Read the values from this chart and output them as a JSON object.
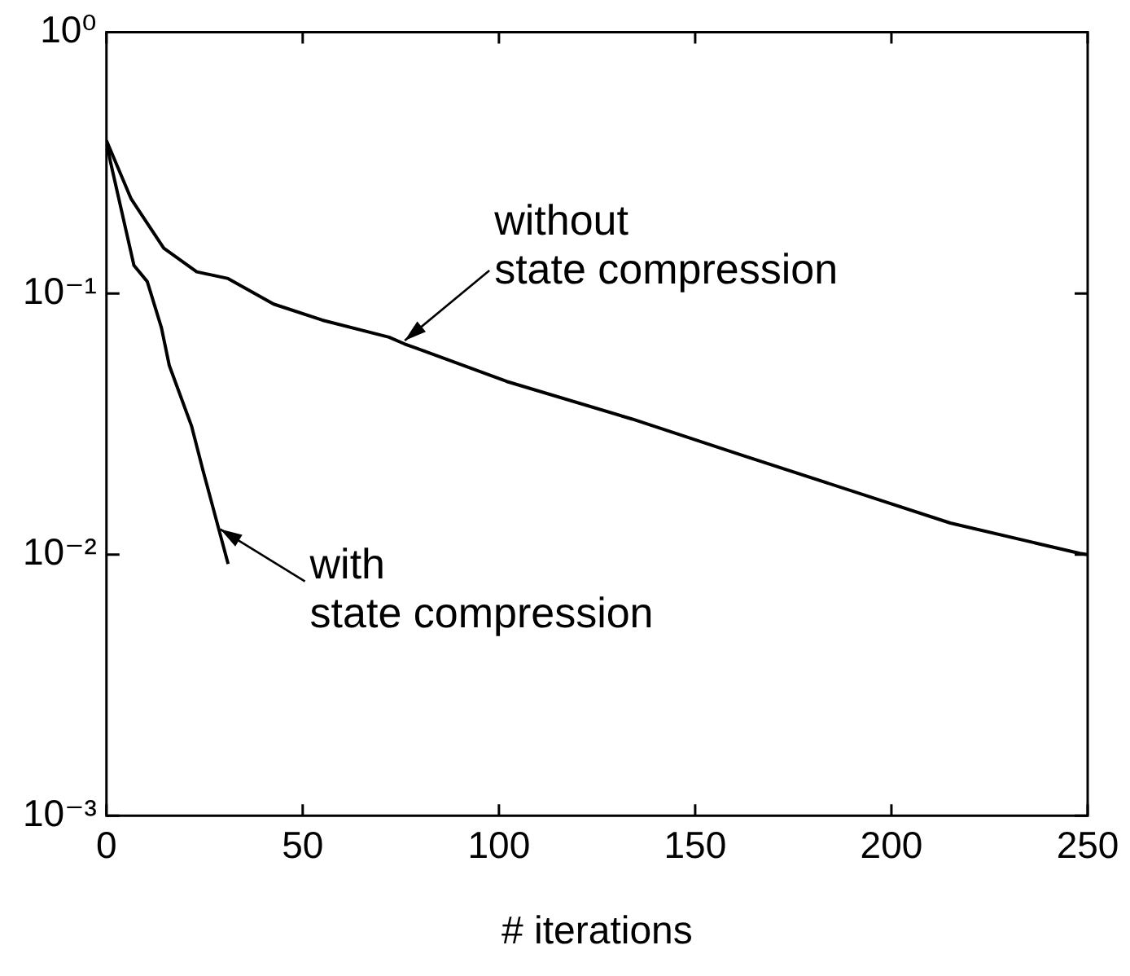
{
  "chart_data": {
    "type": "line",
    "xlabel": "# iterations",
    "log": "y",
    "grid": false,
    "legend": false,
    "marker": "none",
    "line_style": "solid",
    "xlim": [
      0,
      250
    ],
    "xticks": [
      0,
      50,
      100,
      150,
      200,
      250
    ],
    "ylim": [
      0.001,
      1
    ],
    "yticks": [
      {
        "value": 0.001,
        "label": "10⁻³"
      },
      {
        "value": 0.01,
        "label": "10⁻²"
      },
      {
        "value": 0.1,
        "label": "10⁻¹"
      },
      {
        "value": 1,
        "label": "10⁰"
      }
    ],
    "series": [
      {
        "color": "#000000",
        "x": [
          0,
          6.3,
          11.3,
          14.6,
          23,
          31,
          42.6,
          55,
          72,
          76,
          102,
          134,
          162,
          215,
          248,
          250
        ],
        "values": [
          0.385,
          0.23,
          0.177,
          0.149,
          0.121,
          0.114,
          0.091,
          0.079,
          0.068,
          0.064,
          0.046,
          0.033,
          0.024,
          0.0132,
          0.0101,
          0.01
        ]
      },
      {
        "color": "#000000",
        "x": [
          0,
          1,
          7,
          10.4,
          14,
          16,
          21.7,
          24.6,
          31
        ],
        "values": [
          0.385,
          0.32,
          0.128,
          0.111,
          0.074,
          0.053,
          0.031,
          0.021,
          0.0092
        ]
      }
    ],
    "annotations": [
      {
        "text": "without\nstate compression",
        "x": 76,
        "y": 0.066
      },
      {
        "text": "with\nstate compression",
        "x": 29,
        "y": 0.0125
      }
    ]
  }
}
